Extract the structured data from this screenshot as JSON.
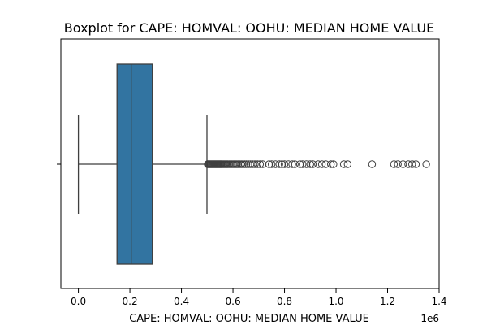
{
  "chart_data": {
    "type": "boxplot",
    "title": "Boxplot for CAPE: HOMVAL: OOHU: MEDIAN HOME VALUE",
    "xlabel": "CAPE: HOMVAL: OOHU: MEDIAN HOME VALUE",
    "ylabel": "",
    "x_offset_label": "1e6",
    "x_tick_values": [
      0.0,
      0.2,
      0.4,
      0.6,
      0.8,
      1.0,
      1.2,
      1.4
    ],
    "x_tick_labels": [
      "0.0",
      "0.2",
      "0.4",
      "0.6",
      "0.8",
      "1.0",
      "1.2",
      "1.4"
    ],
    "xlim": [
      -0.068,
      1.4
    ],
    "scale_multiplier": 1000000,
    "grid": false,
    "box": {
      "whisker_low": 0.0,
      "q1": 0.15,
      "median": 0.205,
      "q3": 0.287,
      "whisker_high": 0.499
    },
    "outliers": [
      0.502,
      0.505,
      0.508,
      0.511,
      0.514,
      0.517,
      0.52,
      0.523,
      0.526,
      0.529,
      0.532,
      0.535,
      0.538,
      0.541,
      0.544,
      0.547,
      0.55,
      0.553,
      0.556,
      0.56,
      0.564,
      0.568,
      0.572,
      0.576,
      0.58,
      0.585,
      0.59,
      0.595,
      0.6,
      0.605,
      0.61,
      0.615,
      0.62,
      0.626,
      0.632,
      0.638,
      0.645,
      0.652,
      0.66,
      0.668,
      0.676,
      0.685,
      0.695,
      0.705,
      0.715,
      0.74,
      0.75,
      0.765,
      0.78,
      0.79,
      0.8,
      0.815,
      0.83,
      0.84,
      0.86,
      0.87,
      0.885,
      0.9,
      0.91,
      0.93,
      0.945,
      0.96,
      0.98,
      0.99,
      1.03,
      1.045,
      1.14,
      1.225,
      1.24,
      1.26,
      1.28,
      1.295,
      1.31,
      1.35
    ],
    "colors": {
      "box_fill": "#3274a1",
      "line": "#3f3f3f",
      "outlier_edge": "#3f3f3f",
      "axis": "#000000"
    }
  }
}
